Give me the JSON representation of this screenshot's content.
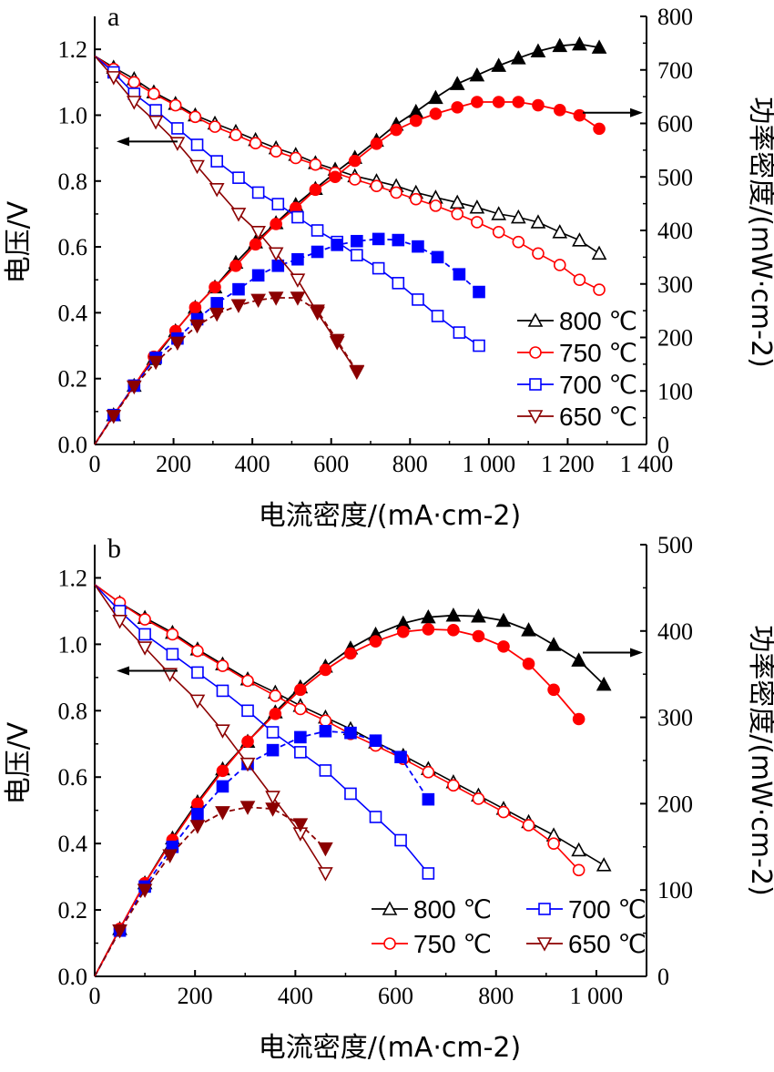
{
  "figure": {
    "colors": {
      "800": "#000000",
      "750": "#ff0000",
      "700": "#0000ff",
      "650": "#8b0000"
    }
  },
  "chart_data": [
    {
      "panel": "a",
      "type": "line",
      "xlabel": "电流密度/(mA·cm-2)",
      "ylabel": "电压/V",
      "y2label": "功率密度/(mW·cm-2)",
      "xlim": [
        0,
        1400
      ],
      "ylim": [
        0,
        1.3
      ],
      "y2lim": [
        0,
        800
      ],
      "xticks": [
        0,
        200,
        400,
        600,
        800,
        1000,
        1200,
        1400
      ],
      "xtick_labels": [
        "0",
        "200",
        "400",
        "600",
        "800",
        "1 000",
        "1 200",
        "1 400"
      ],
      "yticks": [
        0.0,
        0.2,
        0.4,
        0.6,
        0.8,
        1.0,
        1.2
      ],
      "ytick_labels": [
        "0.0",
        "0.2",
        "0.4",
        "0.6",
        "0.8",
        "1.0",
        "1.2"
      ],
      "y2ticks": [
        0,
        100,
        200,
        300,
        400,
        500,
        600,
        700,
        800
      ],
      "y2tick_labels": [
        "0",
        "100",
        "200",
        "300",
        "400",
        "500",
        "600",
        "700",
        "800"
      ],
      "legend_position": "bottom-right",
      "legend_layout": "column",
      "series": [
        {
          "name": "800 ℃",
          "temp": "800",
          "marker": "triangle-up",
          "x": [
            0,
            48,
            100,
            150,
            205,
            255,
            305,
            358,
            408,
            460,
            510,
            560,
            610,
            660,
            715,
            765,
            815,
            865,
            920,
            970,
            1025,
            1075,
            1125,
            1180,
            1230,
            1280
          ],
          "voltage": [
            1.18,
            1.145,
            1.11,
            1.07,
            1.035,
            1.0,
            0.975,
            0.95,
            0.925,
            0.9,
            0.88,
            0.855,
            0.835,
            0.815,
            0.8,
            0.785,
            0.765,
            0.75,
            0.735,
            0.72,
            0.7,
            0.69,
            0.675,
            0.645,
            0.62,
            0.58
          ],
          "power": [
            0,
            55,
            110,
            160,
            212,
            256,
            294,
            340,
            378,
            414,
            448,
            478,
            508,
            536,
            568,
            598,
            622,
            648,
            674,
            690,
            708,
            722,
            735,
            745,
            748,
            742
          ]
        },
        {
          "name": "750 ℃",
          "temp": "750",
          "marker": "circle",
          "x": [
            0,
            48,
            100,
            150,
            205,
            255,
            305,
            358,
            408,
            460,
            510,
            560,
            610,
            660,
            715,
            765,
            815,
            865,
            920,
            970,
            1025,
            1075,
            1125,
            1180,
            1230,
            1280
          ],
          "voltage": [
            1.18,
            1.14,
            1.1,
            1.065,
            1.03,
            0.995,
            0.965,
            0.94,
            0.915,
            0.89,
            0.87,
            0.85,
            0.825,
            0.805,
            0.785,
            0.765,
            0.745,
            0.725,
            0.7,
            0.675,
            0.645,
            0.615,
            0.58,
            0.545,
            0.5,
            0.47
          ],
          "power": [
            0,
            55,
            110,
            164,
            212,
            256,
            294,
            334,
            374,
            412,
            442,
            476,
            500,
            530,
            562,
            588,
            605,
            618,
            630,
            640,
            640,
            640,
            634,
            625,
            615,
            590
          ]
        },
        {
          "name": "700 ℃",
          "temp": "700",
          "marker": "square",
          "x": [
            0,
            48,
            100,
            155,
            210,
            260,
            310,
            365,
            415,
            465,
            515,
            565,
            615,
            665,
            720,
            770,
            820,
            870,
            925,
            975
          ],
          "voltage": [
            1.18,
            1.13,
            1.065,
            1.015,
            0.96,
            0.91,
            0.86,
            0.81,
            0.765,
            0.73,
            0.69,
            0.65,
            0.615,
            0.575,
            0.535,
            0.49,
            0.44,
            0.39,
            0.34,
            0.3
          ],
          "power": [
            0,
            55,
            110,
            162,
            198,
            234,
            264,
            290,
            316,
            334,
            346,
            360,
            373,
            380,
            384,
            382,
            370,
            350,
            318,
            285
          ]
        },
        {
          "name": "650 ℃",
          "temp": "650",
          "marker": "triangle-down",
          "x": [
            0,
            48,
            100,
            155,
            210,
            260,
            310,
            365,
            415,
            460,
            515,
            565,
            615,
            665
          ],
          "voltage": [
            1.18,
            1.115,
            1.04,
            0.98,
            0.915,
            0.845,
            0.775,
            0.7,
            0.645,
            0.58,
            0.5,
            0.4,
            0.31,
            0.22
          ],
          "power": [
            0,
            53,
            108,
            154,
            190,
            222,
            244,
            260,
            270,
            274,
            274,
            250,
            195,
            137
          ]
        }
      ]
    },
    {
      "panel": "b",
      "type": "line",
      "xlabel": "电流密度/(mA·cm-2)",
      "ylabel": "电压/V",
      "y2label": "功率密度/(mW·cm-2)",
      "xlim": [
        0,
        1100
      ],
      "ylim": [
        0,
        1.3
      ],
      "y2lim": [
        0,
        500
      ],
      "xticks": [
        0,
        200,
        400,
        600,
        800,
        1000
      ],
      "xtick_labels": [
        "0",
        "200",
        "400",
        "600",
        "800",
        "1 000"
      ],
      "yticks": [
        0.0,
        0.2,
        0.4,
        0.6,
        0.8,
        1.0,
        1.2
      ],
      "ytick_labels": [
        "0.0",
        "0.2",
        "0.4",
        "0.6",
        "0.8",
        "1.0",
        "1.2"
      ],
      "y2ticks": [
        0,
        100,
        200,
        300,
        400,
        500
      ],
      "y2tick_labels": [
        "0",
        "100",
        "200",
        "300",
        "400",
        "500"
      ],
      "legend_position": "bottom-right",
      "legend_layout": "two-columns",
      "series": [
        {
          "name": "800 ℃",
          "temp": "800",
          "marker": "triangle-up",
          "x": [
            0,
            50,
            100,
            155,
            205,
            255,
            305,
            360,
            410,
            460,
            510,
            560,
            615,
            665,
            715,
            765,
            815,
            865,
            915,
            965,
            1015
          ],
          "voltage": [
            1.18,
            1.125,
            1.08,
            1.035,
            0.985,
            0.94,
            0.895,
            0.855,
            0.815,
            0.78,
            0.745,
            0.705,
            0.665,
            0.625,
            0.585,
            0.545,
            0.505,
            0.465,
            0.425,
            0.38,
            0.335
          ],
          "power": [
            0,
            55,
            108,
            160,
            202,
            240,
            272,
            306,
            335,
            359,
            380,
            396,
            409,
            416,
            418,
            417,
            412,
            401,
            384,
            366,
            338
          ]
        },
        {
          "name": "750 ℃",
          "temp": "750",
          "marker": "circle",
          "x": [
            0,
            50,
            100,
            155,
            205,
            255,
            305,
            360,
            410,
            460,
            510,
            560,
            615,
            665,
            715,
            765,
            815,
            865,
            915,
            965
          ],
          "voltage": [
            1.18,
            1.125,
            1.075,
            1.03,
            0.98,
            0.935,
            0.89,
            0.845,
            0.805,
            0.77,
            0.73,
            0.695,
            0.655,
            0.615,
            0.575,
            0.535,
            0.495,
            0.455,
            0.4,
            0.32
          ],
          "power": [
            0,
            55,
            108,
            158,
            200,
            238,
            272,
            304,
            332,
            355,
            374,
            388,
            399,
            402,
            401,
            394,
            382,
            362,
            332,
            298
          ]
        },
        {
          "name": "700 ℃",
          "temp": "700",
          "marker": "square",
          "x": [
            0,
            50,
            100,
            155,
            205,
            255,
            305,
            355,
            410,
            460,
            510,
            560,
            610,
            665
          ],
          "voltage": [
            1.18,
            1.1,
            1.03,
            0.97,
            0.915,
            0.86,
            0.8,
            0.735,
            0.675,
            0.62,
            0.55,
            0.48,
            0.41,
            0.31
          ],
          "power": [
            0,
            53,
            104,
            150,
            188,
            220,
            246,
            262,
            277,
            284,
            282,
            273,
            254,
            205
          ]
        },
        {
          "name": "650 ℃",
          "temp": "650",
          "marker": "triangle-down",
          "x": [
            0,
            50,
            100,
            150,
            205,
            255,
            305,
            355,
            410,
            460
          ],
          "voltage": [
            1.18,
            1.07,
            0.99,
            0.91,
            0.83,
            0.74,
            0.64,
            0.54,
            0.43,
            0.31
          ],
          "power": [
            0,
            53,
            100,
            140,
            174,
            190,
            196,
            194,
            176,
            148
          ]
        }
      ]
    }
  ]
}
